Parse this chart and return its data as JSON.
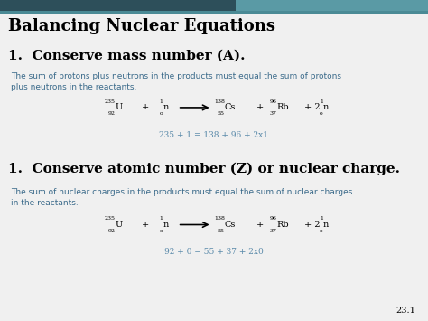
{
  "bg_color": "#f0f0f0",
  "header_dark_color": "#2d4f5a",
  "header_light_color": "#5a9aa5",
  "title": "Balancing Nuclear Equations",
  "title_fontsize": 13,
  "title_color": "#000000",
  "section1_heading": "1.  Conserve mass number (A).",
  "section1_heading_fontsize": 11,
  "section1_desc": "The sum of protons plus neutrons in the products must equal the sum of protons\nplus neutrons in the reactants.",
  "section1_desc_fontsize": 6.5,
  "section1_desc_color": "#3a6a8a",
  "section1_balance": "235 + 1 = 138 + 96 + 2x1",
  "section1_balance_color": "#5a8aaa",
  "section2_heading": "1.  Conserve atomic number (Z) or nuclear charge.",
  "section2_heading_fontsize": 11,
  "section2_desc": "The sum of nuclear charges in the products must equal the sum of nuclear charges\nin the reactants.",
  "section2_desc_fontsize": 6.5,
  "section2_desc_color": "#3a6a8a",
  "section2_balance": "92 + 0 = 55 + 37 + 2x0",
  "section2_balance_color": "#5a8aaa",
  "footnote": "23.1",
  "arrow_color": "#000000",
  "eq_symbol_fontsize": 7,
  "eq_script_fontsize": 4.5,
  "eq_operator_fontsize": 7
}
